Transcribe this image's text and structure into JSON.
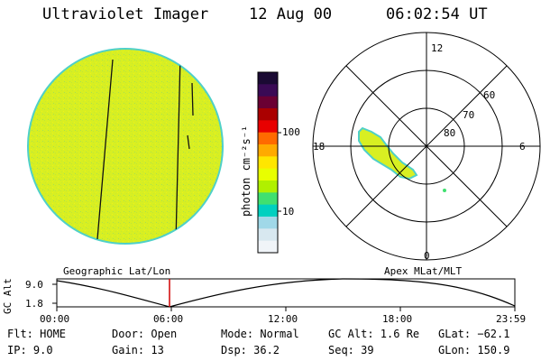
{
  "header": {
    "instrument": "Ultraviolet Imager",
    "date": "12 Aug 00",
    "time": "06:02:54 UT"
  },
  "colorbar": {
    "unit_label": "photon cm⁻²s⁻¹",
    "ticks": [
      "100",
      "10"
    ],
    "colors": [
      "#1a0a33",
      "#3a0a55",
      "#6a0033",
      "#aa0000",
      "#e80000",
      "#ff6a00",
      "#ffaa00",
      "#ffe600",
      "#e8ff00",
      "#b0f000",
      "#40e070",
      "#00d0c0",
      "#a0d8e8",
      "#d8e8f0",
      "#f0f4f8"
    ]
  },
  "polar": {
    "mlt_labels": [
      "12",
      "6",
      "0",
      "18"
    ],
    "lat_labels": [
      "60",
      "70",
      "80"
    ]
  },
  "projection_labels": {
    "left": "Geographic Lat/Lon",
    "right": "Apex MLat/MLT"
  },
  "altitude_plot": {
    "ylabel": "GC Alt",
    "yticks": [
      "9.0",
      "1.8"
    ],
    "xticks": [
      "00:00",
      "06:00",
      "12:00",
      "18:00",
      "23:59"
    ]
  },
  "info": {
    "row1": {
      "flt": "Flt: HOME",
      "door": "Door: Open",
      "mode": "Mode: Normal",
      "gcalt": "GC Alt: 1.6 Re",
      "glat": "GLat: −62.1"
    },
    "row2": {
      "ip": "IP:  9.0",
      "gain": "Gain: 13",
      "dsp": "Dsp:   36.2",
      "seq": "Seq: 39",
      "glon": "GLon: 150.9"
    }
  },
  "colors": {
    "disk_fill": "#d8ef22",
    "disk_edge": "#4fd0c8",
    "current_time_marker": "#d00000"
  }
}
